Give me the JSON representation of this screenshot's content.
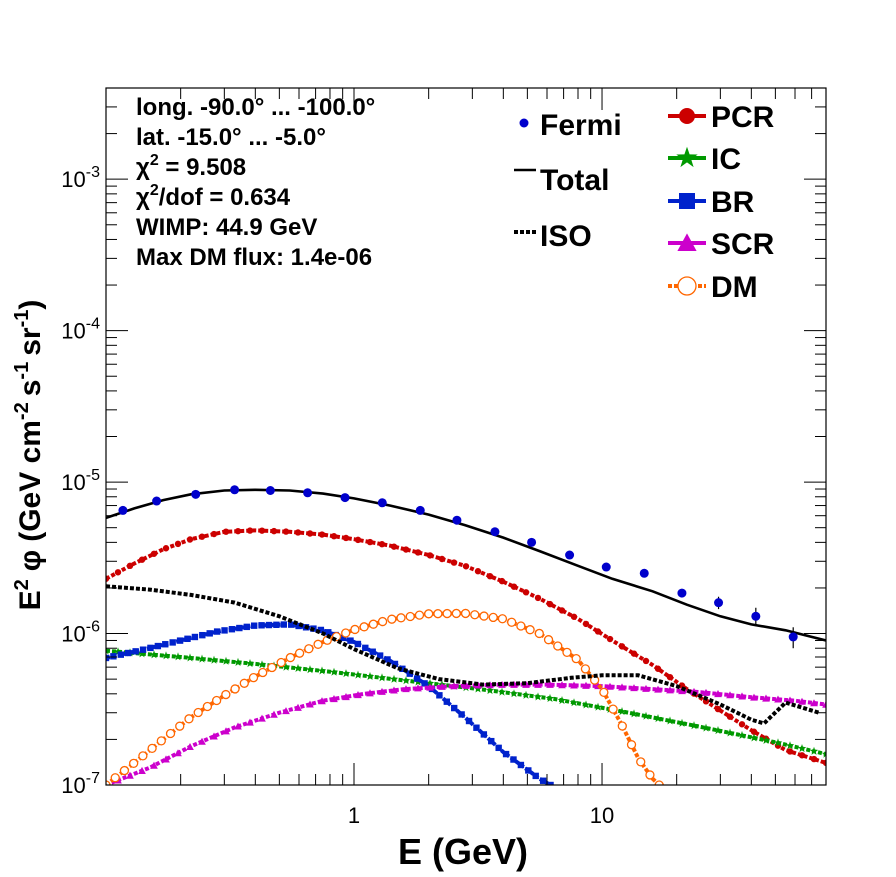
{
  "chart_data": {
    "type": "line",
    "xlabel": "E (GeV)",
    "ylabel": {
      "base": "E",
      "base_sup": "2",
      "phi": "φ",
      "unit_open": "(GeV cm",
      "unit_cm_sup": "-2",
      "unit_s": "s",
      "unit_s_sup": "-1",
      "unit_sr": "sr",
      "unit_sr_sup": "-1",
      "unit_close": ")"
    },
    "x_scale": "log",
    "y_scale": "log",
    "xlim": [
      0.1,
      80
    ],
    "ylim": [
      1e-07,
      0.004
    ],
    "x_tick_labels": [
      {
        "value": 1,
        "label": "1"
      },
      {
        "value": 10,
        "label": "10"
      }
    ],
    "y_tick_labels": [
      {
        "value": 1e-07,
        "mant": "10",
        "exp": "-7"
      },
      {
        "value": 1e-06,
        "mant": "10",
        "exp": "-6"
      },
      {
        "value": 1e-05,
        "mant": "10",
        "exp": "-5"
      },
      {
        "value": 0.0001,
        "mant": "10",
        "exp": "-4"
      },
      {
        "value": 0.001,
        "mant": "10",
        "exp": "-3"
      }
    ],
    "info_text": [
      "long. -90.0° ... -100.0°",
      "lat. -15.0° ... -5.0°",
      {
        "sym": "χ",
        "sup": "2",
        "rest": " = 9.508"
      },
      {
        "sym": "χ",
        "sup": "2",
        "rest": "/dof = 0.634"
      },
      "WIMP: 44.9 GeV",
      "Max DM flux: 1.4e-06"
    ],
    "legend_left": [
      {
        "name": "Fermi",
        "style": "points"
      },
      {
        "name": "Total",
        "style": "line"
      },
      {
        "name": "ISO",
        "style": "dotted"
      }
    ],
    "legend_right": [
      {
        "name": "PCR",
        "color": "#cc0000",
        "marker": "circle"
      },
      {
        "name": "IC",
        "color": "#009900",
        "marker": "star"
      },
      {
        "name": "BR",
        "color": "#0022cc",
        "marker": "square"
      },
      {
        "name": "SCR",
        "color": "#cc00cc",
        "marker": "triangle"
      },
      {
        "name": "DM",
        "color": "#ff6600",
        "marker": "open-circle"
      }
    ],
    "fermi": {
      "name": "Fermi",
      "color": "#0000cc",
      "x": [
        0.117,
        0.16,
        0.23,
        0.33,
        0.46,
        0.65,
        0.92,
        1.3,
        1.85,
        2.6,
        3.7,
        5.2,
        7.4,
        10.4,
        14.8,
        21,
        29.5,
        41.7,
        59,
        83.5
      ],
      "y": [
        6.5e-06,
        7.5e-06,
        8.3e-06,
        8.9e-06,
        8.8e-06,
        8.5e-06,
        7.9e-06,
        7.3e-06,
        6.5e-06,
        5.6e-06,
        4.7e-06,
        4e-06,
        3.3e-06,
        2.75e-06,
        2.5e-06,
        1.85e-06,
        1.6e-06,
        1.3e-06,
        9.5e-07,
        1.15e-06
      ],
      "yerr": [
        3e-07,
        3e-07,
        3e-07,
        3e-07,
        3e-07,
        3e-07,
        2.5e-07,
        2.5e-07,
        2e-07,
        2e-07,
        1.5e-07,
        1.2e-07,
        1e-07,
        1e-07,
        1e-07,
        1.2e-07,
        1.5e-07,
        1.8e-07,
        1.5e-07,
        2e-07
      ]
    },
    "series": [
      {
        "name": "Total",
        "color": "#000000",
        "style": "solid",
        "x": [
          0.1,
          0.13,
          0.17,
          0.22,
          0.3,
          0.4,
          0.55,
          0.75,
          1.0,
          1.4,
          2.0,
          2.8,
          4.0,
          5.6,
          8.0,
          11,
          16,
          22,
          30,
          40,
          55,
          80
        ],
        "y": [
          5.8e-06,
          6.7e-06,
          7.6e-06,
          8.3e-06,
          8.8e-06,
          8.9e-06,
          8.8e-06,
          8.4e-06,
          7.8e-06,
          7e-06,
          6.1e-06,
          5.2e-06,
          4.3e-06,
          3.5e-06,
          2.8e-06,
          2.3e-06,
          1.9e-06,
          1.55e-06,
          1.3e-06,
          1.15e-06,
          1.05e-06,
          9e-07
        ]
      },
      {
        "name": "PCR",
        "color": "#cc0000",
        "style": "dotted",
        "marker": "circle",
        "x": [
          0.1,
          0.13,
          0.17,
          0.22,
          0.3,
          0.4,
          0.55,
          0.75,
          1.0,
          1.4,
          2.0,
          2.8,
          4.0,
          5.6,
          8.0,
          11,
          16,
          22,
          30,
          40,
          55,
          80
        ],
        "y": [
          2.3e-06,
          2.9e-06,
          3.6e-06,
          4.2e-06,
          4.7e-06,
          4.8e-06,
          4.7e-06,
          4.5e-06,
          4.2e-06,
          3.8e-06,
          3.3e-06,
          2.8e-06,
          2.2e-06,
          1.7e-06,
          1.25e-06,
          9e-07,
          6.2e-07,
          4.3e-07,
          3.1e-07,
          2.3e-07,
          1.7e-07,
          1.4e-07
        ]
      },
      {
        "name": "IC",
        "color": "#009900",
        "style": "dotted",
        "marker": "star",
        "x": [
          0.1,
          0.2,
          0.4,
          0.8,
          1.6,
          3.2,
          6.4,
          12.8,
          25.6,
          51.2,
          80
        ],
        "y": [
          7.7e-07,
          7e-07,
          6.3e-07,
          5.6e-07,
          4.9e-07,
          4.3e-07,
          3.7e-07,
          3e-07,
          2.4e-07,
          1.9e-07,
          1.6e-07
        ]
      },
      {
        "name": "BR",
        "color": "#0022cc",
        "style": "dotted",
        "marker": "square",
        "x": [
          0.1,
          0.14,
          0.2,
          0.28,
          0.4,
          0.55,
          0.75,
          1.0,
          1.4,
          2.0,
          2.8,
          4.0,
          5.6,
          6.2
        ],
        "y": [
          6.9e-07,
          7.8e-07,
          9e-07,
          1.03e-06,
          1.13e-06,
          1.15e-06,
          1.05e-06,
          8.8e-07,
          6.6e-07,
          4.5e-07,
          2.8e-07,
          1.65e-07,
          1.1e-07,
          1e-07
        ]
      },
      {
        "name": "SCR",
        "color": "#cc00cc",
        "style": "dotted",
        "marker": "triangle",
        "x": [
          0.1,
          0.15,
          0.22,
          0.33,
          0.5,
          0.75,
          1.1,
          1.6,
          2.5,
          4.0,
          6.0,
          10,
          16,
          25,
          40,
          60,
          80
        ],
        "y": [
          1e-07,
          1.3e-07,
          1.8e-07,
          2.4e-07,
          3e-07,
          3.6e-07,
          4e-07,
          4.3e-07,
          4.5e-07,
          4.6e-07,
          4.6e-07,
          4.5e-07,
          4.3e-07,
          4.1e-07,
          3.8e-07,
          3.6e-07,
          3.4e-07
        ]
      },
      {
        "name": "DM",
        "color": "#ff6600",
        "style": "dotted",
        "marker": "open-circle",
        "x": [
          0.1,
          0.13,
          0.17,
          0.22,
          0.3,
          0.4,
          0.55,
          0.75,
          1.0,
          1.4,
          2.0,
          2.8,
          4.0,
          5.6,
          8.0,
          10,
          12,
          14,
          16,
          17
        ],
        "y": [
          1e-07,
          1.4e-07,
          2e-07,
          2.8e-07,
          3.9e-07,
          5.2e-07,
          6.9e-07,
          8.8e-07,
          1.06e-06,
          1.24e-06,
          1.35e-06,
          1.36e-06,
          1.25e-06,
          1e-06,
          6.7e-07,
          4.3e-07,
          2.5e-07,
          1.5e-07,
          1.1e-07,
          1e-07
        ]
      },
      {
        "name": "ISO",
        "color": "#000000",
        "style": "dotted",
        "x": [
          0.1,
          0.15,
          0.22,
          0.33,
          0.5,
          0.75,
          1.0,
          1.5,
          2.2,
          3.3,
          5.0,
          7.5,
          10,
          14,
          20,
          30,
          40,
          45,
          55,
          75
        ],
        "y": [
          2.05e-06,
          1.95e-06,
          1.8e-06,
          1.6e-06,
          1.3e-06,
          1e-06,
          7.9e-07,
          5.9e-07,
          5e-07,
          4.6e-07,
          4.7e-07,
          5.1e-07,
          5.3e-07,
          5.3e-07,
          4.5e-07,
          3.4e-07,
          2.7e-07,
          2.55e-07,
          3.5e-07,
          3e-07
        ]
      }
    ]
  }
}
